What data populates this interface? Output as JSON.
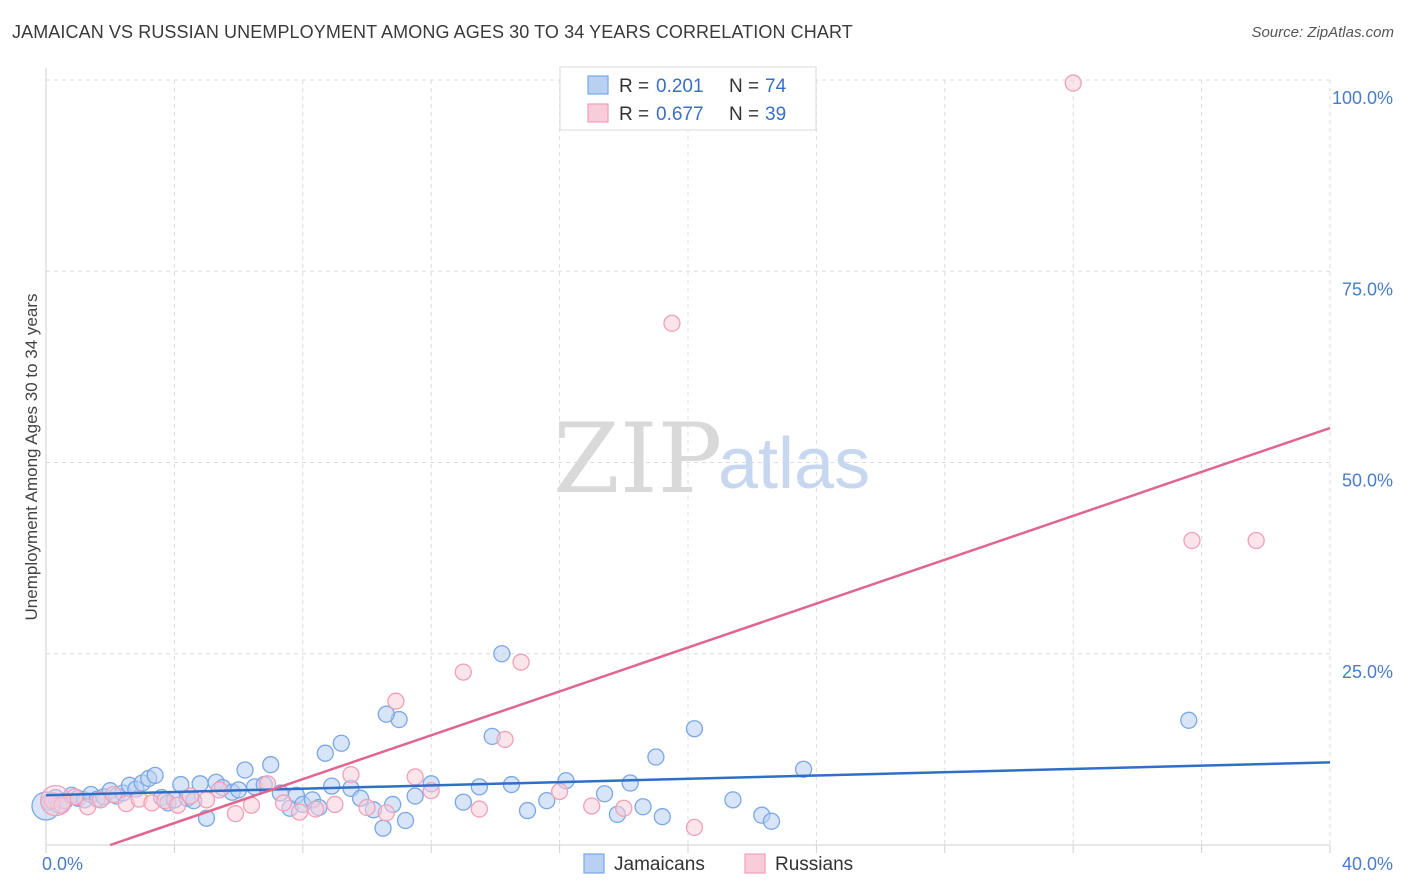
{
  "chart_data": {
    "type": "scatter",
    "title": "JAMAICAN VS RUSSIAN UNEMPLOYMENT AMONG AGES 30 TO 34 YEARS CORRELATION CHART",
    "source": "Source: ZipAtlas.com",
    "xlabel": "",
    "ylabel": "Unemployment Among Ages 30 to 34 years",
    "xlim": [
      0,
      40
    ],
    "ylim": [
      0,
      100
    ],
    "x_tick_labels": [
      "0.0%",
      "40.0%"
    ],
    "y_tick_labels": [
      {
        "value": 25,
        "label": "25.0%"
      },
      {
        "value": 50,
        "label": "50.0%"
      },
      {
        "value": 75,
        "label": "75.0%"
      },
      {
        "value": 100,
        "label": "100.0%"
      }
    ],
    "grid": true,
    "watermark": {
      "part1": "ZIP",
      "part2": "atlas"
    },
    "legend": [
      {
        "series": "Jamaicans",
        "r_label": "R =",
        "r": "0.201",
        "n_label": "N =",
        "n": "74"
      },
      {
        "series": "Russians",
        "r_label": "R =",
        "r": "0.677",
        "n_label": "N =",
        "n": "39"
      }
    ],
    "series": [
      {
        "name": "Jamaicans",
        "color": "#7aa7e6",
        "fill": "#b8d0f2",
        "line_color": "#2f6fc8",
        "trend": {
          "x": [
            0,
            40
          ],
          "y": [
            6.5,
            10.8
          ]
        },
        "points": [
          [
            0.1,
            5.6
          ],
          [
            0.3,
            6.2
          ],
          [
            0.4,
            5.2
          ],
          [
            0.6,
            5.8
          ],
          [
            0.8,
            6.5
          ],
          [
            1.0,
            6.1
          ],
          [
            1.2,
            5.9
          ],
          [
            1.4,
            6.6
          ],
          [
            1.6,
            6.0
          ],
          [
            1.8,
            6.3
          ],
          [
            2.0,
            7.1
          ],
          [
            2.2,
            6.4
          ],
          [
            2.4,
            6.8
          ],
          [
            2.6,
            7.8
          ],
          [
            2.8,
            7.3
          ],
          [
            3.0,
            8.1
          ],
          [
            3.2,
            8.7
          ],
          [
            3.4,
            9.1
          ],
          [
            3.6,
            6.2
          ],
          [
            3.8,
            5.5
          ],
          [
            4.0,
            5.9
          ],
          [
            4.2,
            7.9
          ],
          [
            4.4,
            6.1
          ],
          [
            4.6,
            5.8
          ],
          [
            4.8,
            8.0
          ],
          [
            5.0,
            3.5
          ],
          [
            5.3,
            8.2
          ],
          [
            5.5,
            7.5
          ],
          [
            5.8,
            6.9
          ],
          [
            6.0,
            7.2
          ],
          [
            6.2,
            9.8
          ],
          [
            6.5,
            7.6
          ],
          [
            6.8,
            7.9
          ],
          [
            7.0,
            10.5
          ],
          [
            7.3,
            6.8
          ],
          [
            7.6,
            4.8
          ],
          [
            7.8,
            6.5
          ],
          [
            8.0,
            5.3
          ],
          [
            8.3,
            5.9
          ],
          [
            8.5,
            4.9
          ],
          [
            8.7,
            12.0
          ],
          [
            8.9,
            7.7
          ],
          [
            9.2,
            13.3
          ],
          [
            9.5,
            7.4
          ],
          [
            9.8,
            6.1
          ],
          [
            10.2,
            4.6
          ],
          [
            10.5,
            2.2
          ],
          [
            10.8,
            5.3
          ],
          [
            11.2,
            3.2
          ],
          [
            11.5,
            6.4
          ],
          [
            12.0,
            8.0
          ],
          [
            13.0,
            5.6
          ],
          [
            13.5,
            7.6
          ],
          [
            14.2,
            25.0
          ],
          [
            15.0,
            4.5
          ],
          [
            15.6,
            5.8
          ],
          [
            16.2,
            8.4
          ],
          [
            17.4,
            6.7
          ],
          [
            17.8,
            4.0
          ],
          [
            18.2,
            8.1
          ],
          [
            18.6,
            5.0
          ],
          [
            19.2,
            3.7
          ],
          [
            20.2,
            15.2
          ],
          [
            21.4,
            5.9
          ],
          [
            22.3,
            3.9
          ],
          [
            22.6,
            3.1
          ],
          [
            23.6,
            9.9
          ],
          [
            35.6,
            16.3
          ],
          [
            13.9,
            14.2
          ],
          [
            11.0,
            16.4
          ],
          [
            10.6,
            17.1
          ],
          [
            19.0,
            11.5
          ],
          [
            14.5,
            7.9
          ],
          [
            0.0,
            5.1
          ]
        ]
      },
      {
        "name": "Russians",
        "color": "#f0a0b8",
        "fill": "#f8cdd9",
        "line_color": "#e0668f",
        "trend": {
          "x": [
            2,
            40
          ],
          "y": [
            0,
            54.5
          ]
        },
        "points": [
          [
            0.2,
            5.8
          ],
          [
            0.5,
            5.2
          ],
          [
            0.9,
            6.3
          ],
          [
            1.3,
            5.0
          ],
          [
            1.7,
            5.9
          ],
          [
            2.1,
            6.6
          ],
          [
            2.5,
            5.4
          ],
          [
            2.9,
            6.0
          ],
          [
            3.3,
            5.5
          ],
          [
            3.7,
            5.8
          ],
          [
            4.1,
            5.2
          ],
          [
            4.5,
            6.4
          ],
          [
            5.0,
            5.9
          ],
          [
            5.4,
            7.2
          ],
          [
            5.9,
            4.1
          ],
          [
            6.4,
            5.2
          ],
          [
            6.9,
            8.0
          ],
          [
            7.4,
            5.5
          ],
          [
            7.9,
            4.3
          ],
          [
            8.4,
            4.7
          ],
          [
            9.0,
            5.3
          ],
          [
            9.5,
            9.2
          ],
          [
            10.0,
            4.9
          ],
          [
            10.6,
            4.2
          ],
          [
            10.9,
            18.8
          ],
          [
            11.5,
            8.9
          ],
          [
            12.0,
            7.1
          ],
          [
            13.0,
            22.6
          ],
          [
            13.5,
            4.7
          ],
          [
            14.3,
            13.8
          ],
          [
            14.8,
            23.9
          ],
          [
            16.0,
            7.0
          ],
          [
            17.0,
            5.1
          ],
          [
            18.0,
            4.8
          ],
          [
            19.5,
            68.2
          ],
          [
            20.2,
            2.3
          ],
          [
            32.0,
            99.6
          ],
          [
            35.7,
            39.8
          ],
          [
            37.7,
            39.8
          ]
        ]
      }
    ]
  }
}
